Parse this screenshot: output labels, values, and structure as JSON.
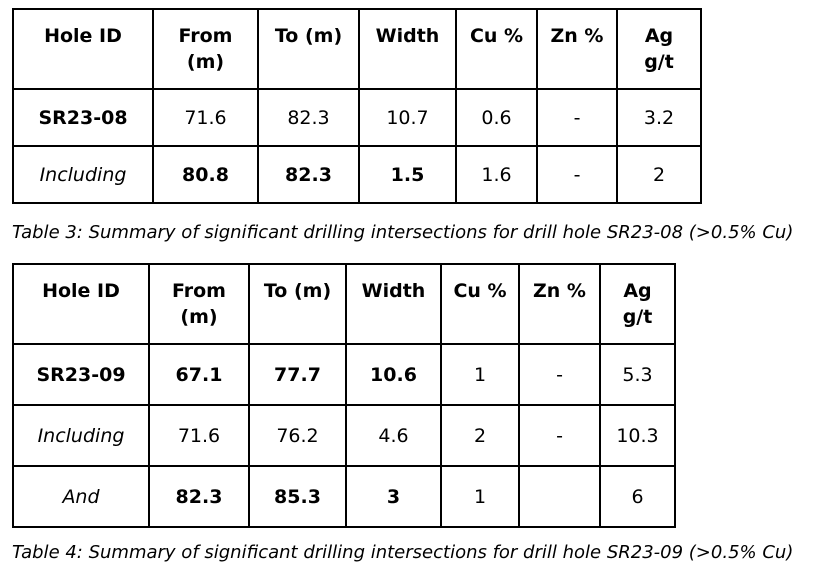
{
  "page": {
    "background_color": "#ffffff",
    "text_color": "#000000",
    "table_border_color": "#000000"
  },
  "tables": [
    {
      "caption": "Table 3: Summary of significant drilling intersections for drill hole SR23-08 (>0.5% Cu)",
      "header_lines": [
        [
          "Hole ID"
        ],
        [
          "From",
          "(m)"
        ],
        [
          "To (m)"
        ],
        [
          "Width"
        ],
        [
          "Cu %"
        ],
        [
          "Zn %"
        ],
        [
          "Ag",
          "g/t"
        ]
      ],
      "rows": [
        [
          {
            "text": "SR23-08",
            "style": "bold"
          },
          {
            "text": "71.6"
          },
          {
            "text": "82.3"
          },
          {
            "text": "10.7"
          },
          {
            "text": "0.6"
          },
          {
            "text": "-"
          },
          {
            "text": "3.2"
          }
        ],
        [
          {
            "text": "Including",
            "style": "italic"
          },
          {
            "text": "80.8",
            "style": "bold"
          },
          {
            "text": "82.3",
            "style": "bold"
          },
          {
            "text": "1.5",
            "style": "bold"
          },
          {
            "text": "1.6"
          },
          {
            "text": "-"
          },
          {
            "text": "2"
          }
        ]
      ]
    },
    {
      "caption": "Table 4: Summary of significant drilling intersections for drill hole SR23-09 (>0.5% Cu)",
      "header_lines": [
        [
          "Hole ID"
        ],
        [
          "From",
          "(m)"
        ],
        [
          "To (m)"
        ],
        [
          "Width"
        ],
        [
          "Cu %"
        ],
        [
          "Zn %"
        ],
        [
          "Ag",
          "g/t"
        ]
      ],
      "rows": [
        [
          {
            "text": "SR23-09",
            "style": "bold"
          },
          {
            "text": "67.1",
            "style": "bold"
          },
          {
            "text": "77.7",
            "style": "bold"
          },
          {
            "text": "10.6",
            "style": "bold"
          },
          {
            "text": "1"
          },
          {
            "text": "-"
          },
          {
            "text": "5.3"
          }
        ],
        [
          {
            "text": "Including",
            "style": "italic"
          },
          {
            "text": "71.6"
          },
          {
            "text": "76.2"
          },
          {
            "text": "4.6"
          },
          {
            "text": "2"
          },
          {
            "text": "-"
          },
          {
            "text": "10.3"
          }
        ],
        [
          {
            "text": "And",
            "style": "italic"
          },
          {
            "text": "82.3",
            "style": "bold"
          },
          {
            "text": "85.3",
            "style": "bold"
          },
          {
            "text": "3",
            "style": "bold"
          },
          {
            "text": "1"
          },
          {
            "text": ""
          },
          {
            "text": "6"
          }
        ]
      ]
    }
  ]
}
